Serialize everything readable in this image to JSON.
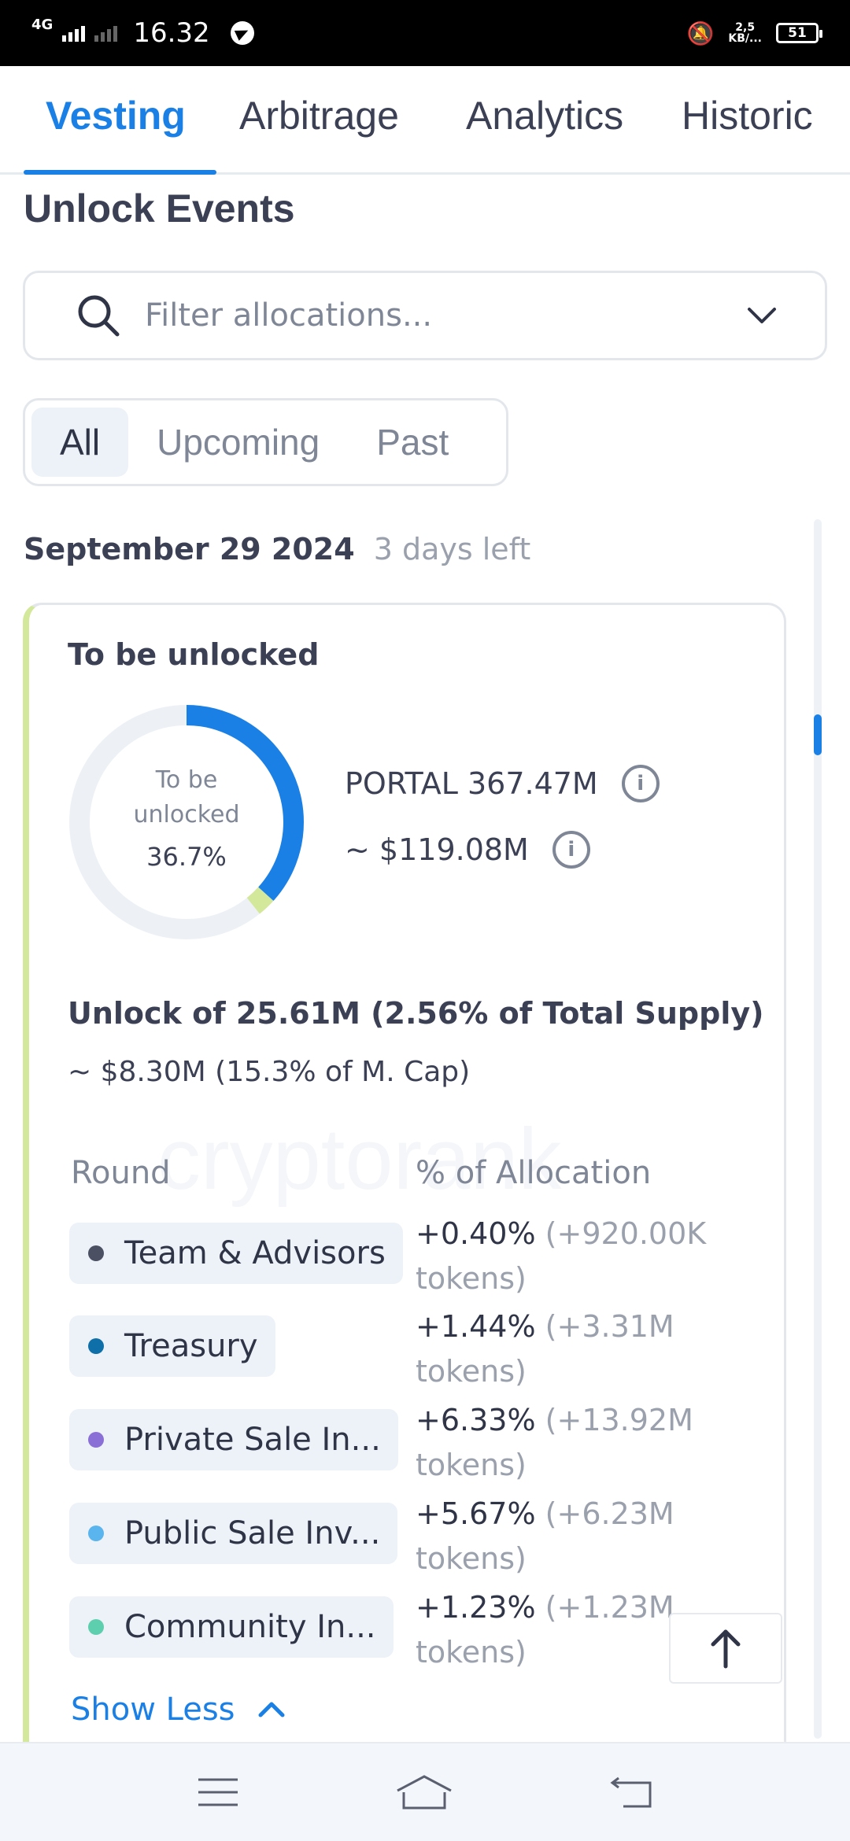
{
  "status_bar": {
    "network": "4G",
    "time": "16.32",
    "speed_value": "2,5",
    "speed_unit": "KB/...",
    "battery": "51"
  },
  "tabs": [
    {
      "label": "Vesting",
      "active": true
    },
    {
      "label": "Arbitrage",
      "active": false
    },
    {
      "label": "Analytics",
      "active": false
    },
    {
      "label": "Historic",
      "active": false
    }
  ],
  "section_title": "Unlock Events",
  "search": {
    "placeholder": "Filter allocations...",
    "value": ""
  },
  "filters": [
    {
      "label": "All",
      "active": true
    },
    {
      "label": "Upcoming",
      "active": false
    },
    {
      "label": "Past",
      "active": false
    }
  ],
  "event": {
    "date": "September 29 2024",
    "days_left": "3 days left",
    "card_title": "To be unlocked",
    "donut": {
      "label_line1": "To be",
      "label_line2": "unlocked",
      "percent_text": "36.7%",
      "to_be_unlocked_pct": 36.7,
      "next_unlock_pct": 2.56,
      "colors": {
        "track": "#edf1f5",
        "main": "#1a80e5",
        "next": "#d3e89a"
      }
    },
    "token_amount": "PORTAL 367.47M",
    "usd_amount": "~ $119.08M",
    "unlock_summary": "Unlock of 25.61M (2.56% of Total Supply)",
    "mcap_summary": "~ $8.30M (15.3% of M. Cap)",
    "watermark": "cryptorank",
    "columns": {
      "round": "Round",
      "allocation": "% of Allocation"
    },
    "rounds": [
      {
        "name": "Team & Advisors",
        "color": "#4b5063",
        "pct": "+0.40%",
        "tokens": "(+920.00K",
        "tokens_suffix": "tokens)"
      },
      {
        "name": "Treasury",
        "color": "#0f6fa8",
        "pct": "+1.44%",
        "tokens": "(+3.31M",
        "tokens_suffix": "tokens)"
      },
      {
        "name": "Private Sale In...",
        "color": "#8a6fd6",
        "pct": "+6.33%",
        "tokens": "(+13.92M",
        "tokens_suffix": "tokens)"
      },
      {
        "name": "Public Sale Inv...",
        "color": "#5ab4ee",
        "pct": "+5.67%",
        "tokens": "(+6.23M",
        "tokens_suffix": "tokens)"
      },
      {
        "name": "Community In...",
        "color": "#5ecfae",
        "pct": "+1.23%",
        "tokens": "(+1.23M",
        "tokens_suffix": "tokens)"
      }
    ],
    "show_less": "Show Less"
  }
}
